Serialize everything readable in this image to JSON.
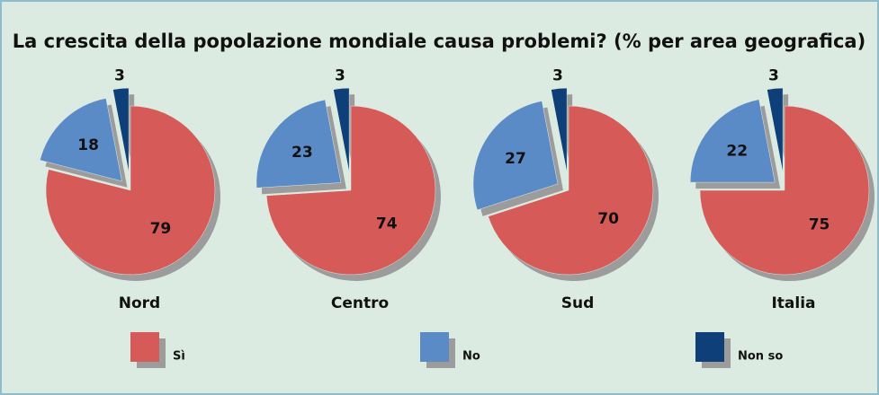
{
  "chart_data": {
    "type": "pie",
    "title": "La crescita della popolazione mondiale causa problemi? (% per area geografica)",
    "categories": [
      "Sì",
      "No",
      "Non so"
    ],
    "colors": [
      "#d65a57",
      "#5b8bc7",
      "#0f3f78"
    ],
    "series": [
      {
        "name": "Nord",
        "values": [
          79,
          18,
          3
        ]
      },
      {
        "name": "Centro",
        "values": [
          74,
          23,
          3
        ]
      },
      {
        "name": "Sud",
        "values": [
          70,
          27,
          3
        ]
      },
      {
        "name": "Italia",
        "values": [
          75,
          22,
          3
        ]
      }
    ]
  }
}
